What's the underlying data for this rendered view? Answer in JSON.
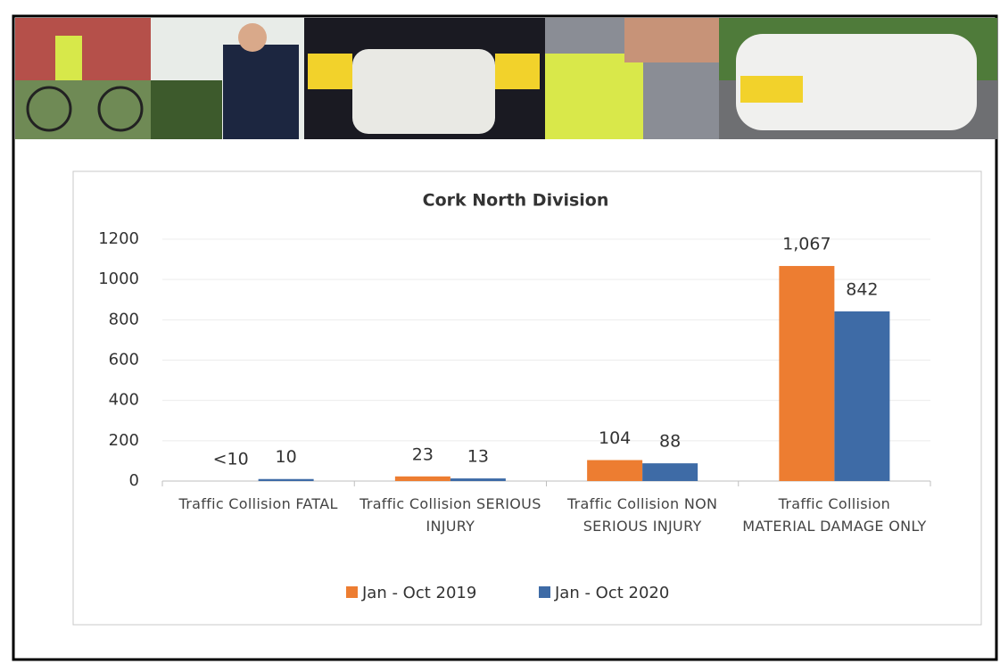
{
  "chart_data": {
    "type": "bar",
    "title": "Cork North Division",
    "categories": [
      "Traffic Collision FATAL",
      "Traffic Collision SERIOUS INJURY",
      "Traffic Collision NON SERIOUS INJURY",
      "Traffic Collision MATERIAL DAMAGE ONLY"
    ],
    "series": [
      {
        "name": "Jan - Oct 2019",
        "color": "#ed7d31",
        "values": [
          null,
          23,
          104,
          1067
        ],
        "value_labels": [
          "<10",
          "23",
          "104",
          "1,067"
        ]
      },
      {
        "name": "Jan - Oct 2020",
        "color": "#3e6ba6",
        "values": [
          10,
          13,
          88,
          842
        ],
        "value_labels": [
          "10",
          "13",
          "88",
          "842"
        ]
      }
    ],
    "ylim": [
      0,
      1200
    ],
    "yticks": [
      0,
      200,
      400,
      600,
      800,
      1000,
      1200
    ],
    "grid": true,
    "legend": "bottom"
  }
}
